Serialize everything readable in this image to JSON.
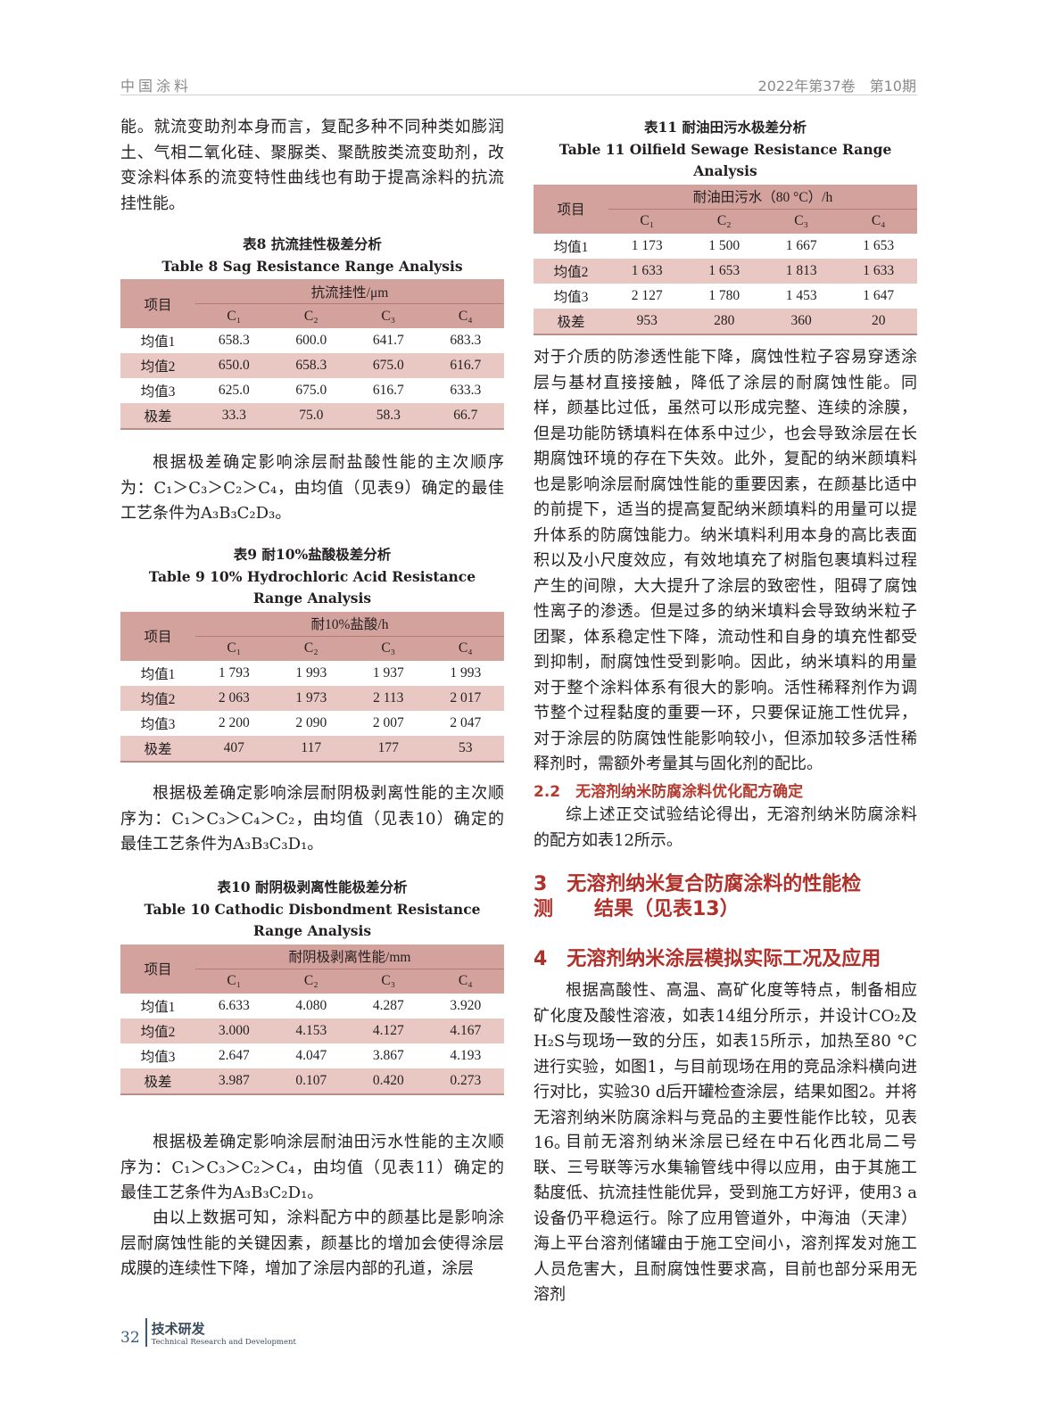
{
  "header": {
    "journal": "中国涂料",
    "issue": "2022年第37卷　第10期"
  },
  "left": {
    "p1": "能。就流变助剂本身而言，复配多种不同种类如膨润土、气相二氧化硅、聚脲类、聚酰胺类流变助剂，改变涂料体系的流变特性曲线也有助于提高涂料的抗流挂性能。",
    "p2": "根据极差确定影响涂层耐盐酸性能的主次顺序为：C₁＞C₃＞C₂＞C₄，由均值（见表9）确定的最佳工艺条件为A₃B₃C₂D₃。",
    "p3": "根据极差确定影响涂层耐阴极剥离性能的主次顺序为：C₁＞C₃＞C₄＞C₂，由均值（见表10）确定的最佳工艺条件为A₃B₃C₃D₁。",
    "p4": "根据极差确定影响涂层耐油田污水性能的主次顺序为：C₁＞C₃＞C₂＞C₄，由均值（见表11）确定的最佳工艺条件为A₃B₃C₂D₁。",
    "p5": "由以上数据可知，涂料配方中的颜基比是影响涂层耐腐蚀性能的关键因素，颜基比的增加会使得涂层成膜的连续性下降，增加了涂层内部的孔道，涂层"
  },
  "tables": {
    "t8": {
      "cn": "表8  抗流挂性极差分析",
      "en": "Table 8   Sag Resistance Range Analysis",
      "item": "项目",
      "group": "抗流挂性/μm",
      "cols": [
        "C₁",
        "C₂",
        "C₃",
        "C₄"
      ],
      "rows": [
        [
          "均值1",
          "658.3",
          "600.0",
          "641.7",
          "683.3"
        ],
        [
          "均值2",
          "650.0",
          "658.3",
          "675.0",
          "616.7"
        ],
        [
          "均值3",
          "625.0",
          "675.0",
          "616.7",
          "633.3"
        ],
        [
          "极差",
          "33.3",
          "75.0",
          "58.3",
          "66.7"
        ]
      ]
    },
    "t9": {
      "cn": "表9    耐10%盐酸极差分析",
      "en": "Table 9   10% Hydrochloric Acid Resistance Range Analysis",
      "item": "项目",
      "group": "耐10%盐酸/h",
      "cols": [
        "C₁",
        "C₂",
        "C₃",
        "C₄"
      ],
      "rows": [
        [
          "均值1",
          "1 793",
          "1 993",
          "1 937",
          "1 993"
        ],
        [
          "均值2",
          "2 063",
          "1 973",
          "2 113",
          "2 017"
        ],
        [
          "均值3",
          "2 200",
          "2 090",
          "2 007",
          "2 047"
        ],
        [
          "极差",
          "407",
          "117",
          "177",
          "53"
        ]
      ]
    },
    "t10": {
      "cn": "表10    耐阴极剥离性能极差分析",
      "en": "Table 10   Cathodic Disbondment Resistance Range Analysis",
      "item": "项目",
      "group": "耐阴极剥离性能/mm",
      "cols": [
        "C₁",
        "C₂",
        "C₃",
        "C₄"
      ],
      "rows": [
        [
          "均值1",
          "6.633",
          "4.080",
          "4.287",
          "3.920"
        ],
        [
          "均值2",
          "3.000",
          "4.153",
          "4.127",
          "4.167"
        ],
        [
          "均值3",
          "2.647",
          "4.047",
          "3.867",
          "4.193"
        ],
        [
          "极差",
          "3.987",
          "0.107",
          "0.420",
          "0.273"
        ]
      ]
    },
    "t11": {
      "cn": "表11    耐油田污水极差分析",
      "en": "Table 11   Oilfield Sewage Resistance Range Analysis",
      "item": "项目",
      "group": "耐油田污水（80 °C）/h",
      "cols": [
        "C₁",
        "C₂",
        "C₃",
        "C₄"
      ],
      "rows": [
        [
          "均值1",
          "1 173",
          "1 500",
          "1 667",
          "1 653"
        ],
        [
          "均值2",
          "1 633",
          "1 653",
          "1 813",
          "1 633"
        ],
        [
          "均值3",
          "2 127",
          "1 780",
          "1 453",
          "1 647"
        ],
        [
          "极差",
          "953",
          "280",
          "360",
          "20"
        ]
      ]
    }
  },
  "right": {
    "p1": "对于介质的防渗透性能下降，腐蚀性粒子容易穿透涂层与基材直接接触，降低了涂层的耐腐蚀性能。同样，颜基比过低，虽然可以形成完整、连续的涂膜，但是功能防锈填料在体系中过少，也会导致涂层在长期腐蚀环境的存在下失效。此外，复配的纳米颜填料也是影响涂层耐腐蚀性能的重要因素，在颜基比适中的前提下，适当的提高复配纳米颜填料的用量可以提升体系的防腐蚀能力。纳米填料利用本身的高比表面积以及小尺度效应，有效地填充了树脂包裹填料过程产生的间隙，大大提升了涂层的致密性，阻碍了腐蚀性离子的渗透。但是过多的纳米填料会导致纳米粒子团聚，体系稳定性下降，流动性和自身的填充性都受到抑制，耐腐蚀性受到影响。因此，纳米填料的用量对于整个涂料体系有很大的影响。活性稀释剂作为调节整个过程黏度的重要一环，只要保证施工性优异，对于涂层的防腐蚀性能影响较小，但添加较多活性稀释剂时，需额外考量其与固化剂的配比。",
    "h22": "2.2　无溶剂纳米防腐涂料优化配方确定",
    "p2": "综上述正交试验结论得出，无溶剂纳米防腐涂料的配方如表12所示。",
    "h3": "3　无溶剂纳米复合防腐涂料的性能检测      结果（见表13）",
    "h4": "4　无溶剂纳米涂层模拟实际工况及应用",
    "p3": "根据高酸性、高温、高矿化度等特点，制备相应矿化度及酸性溶液，如表14组分所示，并设计CO₂及H₂S与现场一致的分压，如表15所示，加热至80 °C进行实验，如图1，与目前现场在用的竞品涂料横向进行对比，实验30 d后开罐检查涂层，结果如图2。并将无溶剂纳米防腐涂料与竞品的主要性能作比较，见表16。",
    "p4": "目前无溶剂纳米涂层已经在中石化西北局二号联、三号联等污水集输管线中得以应用，由于其施工黏度低、抗流挂性能优异，受到施工方好评，使用3 a设备仍平稳运行。除了应用管道外，中海油（天津）海上平台溶剂储罐由于施工空间小，溶剂挥发对施工人员危害大，且耐腐蚀性要求高，目前也部分采用无溶剂"
  },
  "footer": {
    "page": "32",
    "section": "技术研发",
    "section_en": "Technical Research and Development"
  },
  "colors": {
    "table_header": "#d4a29c",
    "table_alt_row": "#e9c8c4",
    "heading_red": "#b0302a",
    "footer_blue": "#3a5a7a"
  }
}
